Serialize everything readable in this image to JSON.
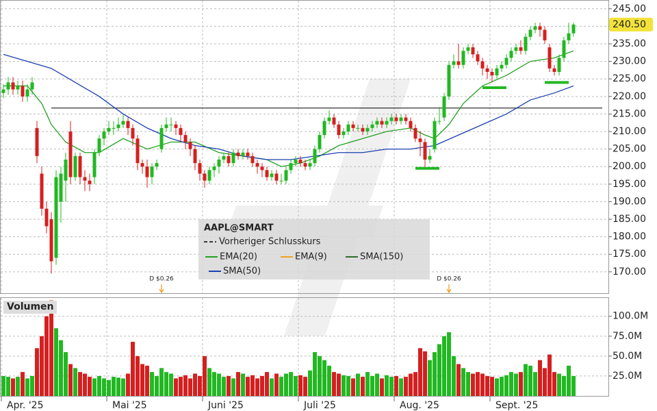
{
  "chart_data": [
    {
      "type": "candlestick",
      "symbol": "AAPL@SMART",
      "up_color": "#22b822",
      "down_color": "#d42020",
      "ylim": [
        164.5,
        247.5
      ],
      "yticks": [
        {
          "value": 245,
          "label": "245.00"
        },
        {
          "value": 240,
          "label": "240.00"
        },
        {
          "value": 235,
          "label": "235.00"
        },
        {
          "value": 230,
          "label": "230.00"
        },
        {
          "value": 225,
          "label": "225.00"
        },
        {
          "value": 220,
          "label": "220.00"
        },
        {
          "value": 215,
          "label": "215.00"
        },
        {
          "value": 210,
          "label": "210.00"
        },
        {
          "value": 205,
          "label": "205.00"
        },
        {
          "value": 200,
          "label": "200.00"
        },
        {
          "value": 195,
          "label": "195.00"
        },
        {
          "value": 190,
          "label": "190.00"
        },
        {
          "value": 185,
          "label": "185.00"
        },
        {
          "value": 180,
          "label": "180.00"
        },
        {
          "value": 175,
          "label": "175.00"
        },
        {
          "value": 170,
          "label": "170.00"
        }
      ],
      "grid": true,
      "open": [
        221,
        222,
        224,
        222,
        223,
        220,
        222,
        211,
        198,
        188,
        185,
        174,
        190,
        196,
        210,
        197,
        203,
        197,
        196,
        197,
        204,
        208,
        210,
        211,
        211,
        212,
        213,
        211,
        208,
        201,
        200,
        197,
        200,
        205,
        211,
        212,
        212,
        211,
        209,
        207,
        205,
        201,
        198,
        196,
        199,
        200,
        202,
        203,
        201,
        204,
        203,
        204,
        203,
        201,
        200,
        199,
        197,
        198,
        196,
        196,
        199,
        201,
        202,
        201,
        200,
        201,
        205,
        209,
        213,
        214,
        212,
        209,
        210,
        212,
        211,
        211,
        210,
        211,
        212,
        213,
        212,
        213,
        214,
        213,
        214,
        213,
        211,
        208,
        207,
        202,
        205,
        213,
        214,
        220,
        229,
        230,
        229,
        233,
        234,
        232,
        230,
        228,
        227,
        226,
        228,
        229,
        231,
        233,
        234,
        233,
        237,
        239,
        240,
        239,
        234,
        228,
        227,
        231,
        236,
        238
      ],
      "high": [
        223.5,
        225.5,
        225.5,
        224.5,
        224.5,
        223.5,
        225.5,
        213,
        200,
        190,
        187,
        199,
        200,
        204,
        213,
        204,
        204,
        199,
        198,
        205,
        209,
        211,
        213,
        213,
        214,
        215,
        214,
        212,
        209,
        202,
        202,
        201,
        202,
        212,
        214,
        214,
        213,
        212,
        210,
        208,
        206,
        202,
        199,
        200,
        201,
        203,
        204,
        204,
        205,
        205,
        205,
        205,
        204,
        202,
        201,
        200,
        199,
        199,
        198,
        200,
        202,
        203,
        203,
        202,
        202,
        206,
        210,
        214,
        216,
        215,
        213,
        211,
        213,
        213,
        212,
        212,
        212,
        213,
        214,
        214,
        214,
        215,
        215,
        215,
        215,
        214,
        212,
        210,
        208,
        205,
        214,
        217,
        221,
        230,
        232,
        235,
        234,
        235,
        235,
        233,
        231,
        229,
        228,
        229,
        230,
        232,
        234,
        235,
        236,
        238,
        240,
        241,
        241,
        240,
        235,
        229,
        232,
        237,
        241,
        241
      ],
      "low": [
        219.5,
        220.5,
        220.5,
        220.5,
        218.5,
        218.5,
        220.5,
        201,
        186,
        181,
        169.5,
        172,
        184,
        190,
        195,
        196,
        195,
        193,
        193,
        195,
        203,
        206,
        209,
        209,
        210,
        211,
        209,
        206,
        199,
        198,
        194,
        195,
        199,
        204,
        210,
        210,
        209,
        207,
        205,
        203,
        199,
        196,
        194,
        195,
        197,
        198,
        201,
        200,
        200,
        202,
        202,
        202,
        200,
        198,
        197,
        196,
        196,
        195,
        195,
        195,
        198,
        200,
        200,
        199,
        199,
        200,
        204,
        208,
        212,
        211,
        208,
        208,
        209,
        210,
        210,
        209,
        209,
        210,
        211,
        211,
        211,
        212,
        212,
        212,
        212,
        210,
        207,
        203,
        200,
        201,
        204,
        212,
        213,
        219,
        228,
        228,
        228,
        232,
        231,
        229,
        226,
        225,
        224,
        225,
        227,
        228,
        230,
        232,
        232,
        232,
        236,
        238,
        237,
        235,
        227,
        226,
        226,
        230,
        235,
        237
      ],
      "close": [
        222,
        224,
        222,
        223,
        220,
        222,
        224,
        203,
        188,
        183,
        173,
        197,
        198,
        202,
        197,
        203,
        197,
        196,
        195,
        204,
        208,
        210,
        211,
        211,
        212,
        213,
        211,
        208,
        201,
        200,
        197,
        200,
        201,
        211,
        212,
        212,
        211,
        209,
        207,
        205,
        201,
        198,
        196,
        199,
        200,
        202,
        203,
        201,
        204,
        203,
        204,
        203,
        201,
        200,
        199,
        197,
        198,
        196,
        196,
        199,
        201,
        202,
        201,
        200,
        201,
        205,
        209,
        213,
        214,
        212,
        209,
        210,
        212,
        211,
        211,
        210,
        211,
        212,
        213,
        212,
        213,
        214,
        213,
        214,
        213,
        211,
        208,
        207,
        202,
        203,
        213,
        213,
        220,
        229,
        230,
        229,
        233,
        234,
        232,
        230,
        228,
        227,
        226,
        228,
        229,
        231,
        233,
        234,
        233,
        237,
        239,
        240,
        239,
        236,
        228,
        227,
        231,
        236,
        238,
        240.5
      ],
      "last_price": {
        "value": 240.5,
        "label": "240.50"
      },
      "reference_line": {
        "name": "Vorheriger Schlusskurs",
        "value": 216.7,
        "color": "#000000"
      },
      "overlays": [
        {
          "name": "EMA(20)",
          "color": "#22a022",
          "x": [
            0,
            5,
            8,
            10,
            13,
            17,
            20,
            25,
            30,
            35,
            40,
            45,
            50,
            55,
            58,
            62,
            66,
            70,
            75,
            80,
            85,
            88,
            90,
            93,
            96,
            100,
            105,
            110,
            115,
            119
          ],
          "values": [
            223,
            223,
            218,
            212,
            207,
            204,
            204,
            208,
            205,
            207,
            207,
            204,
            203,
            202,
            200,
            201,
            203,
            206,
            208,
            210,
            211,
            209,
            208,
            212,
            218,
            223,
            226,
            230,
            231,
            233
          ]
        },
        {
          "name": "EMA(9)",
          "color": "#f0a020"
        },
        {
          "name": "SMA(150)",
          "color": "#2e6b2e"
        },
        {
          "name": "SMA(50)",
          "color": "#1a3fb0",
          "x": [
            0,
            5,
            10,
            15,
            20,
            25,
            30,
            35,
            40,
            45,
            50,
            55,
            60,
            65,
            70,
            75,
            80,
            85,
            90,
            95,
            100,
            105,
            110,
            115,
            119
          ],
          "values": [
            232,
            230,
            228,
            224,
            220,
            215,
            211,
            208,
            206,
            205,
            203,
            202,
            202,
            203,
            204,
            204,
            205,
            205,
            206,
            209,
            212,
            215,
            219,
            221,
            223
          ]
        }
      ],
      "markers": [
        {
          "x": [
            86,
            91
          ],
          "value": 199.5,
          "color": "#22b822"
        },
        {
          "x": [
            100,
            105
          ],
          "value": 222.5,
          "color": "#22b822"
        },
        {
          "x": [
            113,
            118
          ],
          "value": 224,
          "color": "#22b822"
        }
      ],
      "annotations": [
        {
          "x": 33,
          "text": "D $0.26",
          "color": "#f0a020"
        },
        {
          "x": 93,
          "text": "D $0.26",
          "color": "#f0a020"
        }
      ]
    },
    {
      "type": "bar",
      "title": "Volumen",
      "categories": [
        "Apr. '25",
        null,
        null,
        null,
        null,
        null,
        null,
        null,
        null,
        null,
        null,
        null,
        null,
        null,
        null,
        null,
        null,
        null,
        null,
        null,
        null,
        null,
        "Mai '25",
        null,
        null,
        null,
        null,
        null,
        null,
        null,
        null,
        null,
        null,
        null,
        null,
        null,
        null,
        null,
        null,
        null,
        null,
        null,
        "Juni '25",
        null,
        null,
        null,
        null,
        null,
        null,
        null,
        null,
        null,
        null,
        null,
        null,
        null,
        null,
        null,
        null,
        null,
        null,
        null,
        "Juli '25",
        null,
        null,
        null,
        null,
        null,
        null,
        null,
        null,
        null,
        null,
        null,
        null,
        null,
        null,
        null,
        null,
        null,
        null,
        null,
        "Aug. '25",
        null,
        null,
        null,
        null,
        null,
        null,
        null,
        null,
        null,
        null,
        null,
        null,
        null,
        null,
        null,
        null,
        null,
        null,
        null,
        "Sept. '25",
        null,
        null,
        null,
        null,
        null,
        null,
        null,
        null,
        null,
        null,
        null,
        null,
        null,
        null,
        null,
        null,
        null
      ],
      "values": [
        25,
        24,
        22,
        24,
        30,
        22,
        25,
        60,
        75,
        100,
        120,
        85,
        70,
        55,
        40,
        35,
        30,
        28,
        24,
        22,
        25,
        22,
        20,
        24,
        23,
        22,
        28,
        68,
        50,
        40,
        38,
        30,
        25,
        35,
        30,
        28,
        22,
        24,
        26,
        22,
        28,
        25,
        50,
        35,
        30,
        28,
        24,
        25,
        22,
        30,
        28,
        24,
        26,
        22,
        25,
        30,
        22,
        28,
        24,
        28,
        30,
        25,
        26,
        24,
        32,
        55,
        50,
        45,
        38,
        30,
        28,
        26,
        25,
        22,
        28,
        24,
        30,
        25,
        28,
        22,
        26,
        24,
        25,
        22,
        24,
        28,
        30,
        60,
        56,
        45,
        55,
        65,
        75,
        80,
        50,
        40,
        35,
        30,
        28,
        30,
        28,
        25,
        24,
        22,
        24,
        26,
        30,
        28,
        30,
        40,
        38,
        30,
        45,
        35,
        52,
        30,
        28,
        25,
        38,
        25
      ],
      "ylim": [
        0,
        123
      ],
      "yticks": [
        {
          "value": 100,
          "label": "100.0M"
        },
        {
          "value": 75,
          "label": "75.0M"
        },
        {
          "value": 50,
          "label": "50.0M"
        },
        {
          "value": 25,
          "label": "25.0M"
        }
      ],
      "grid": true
    }
  ]
}
